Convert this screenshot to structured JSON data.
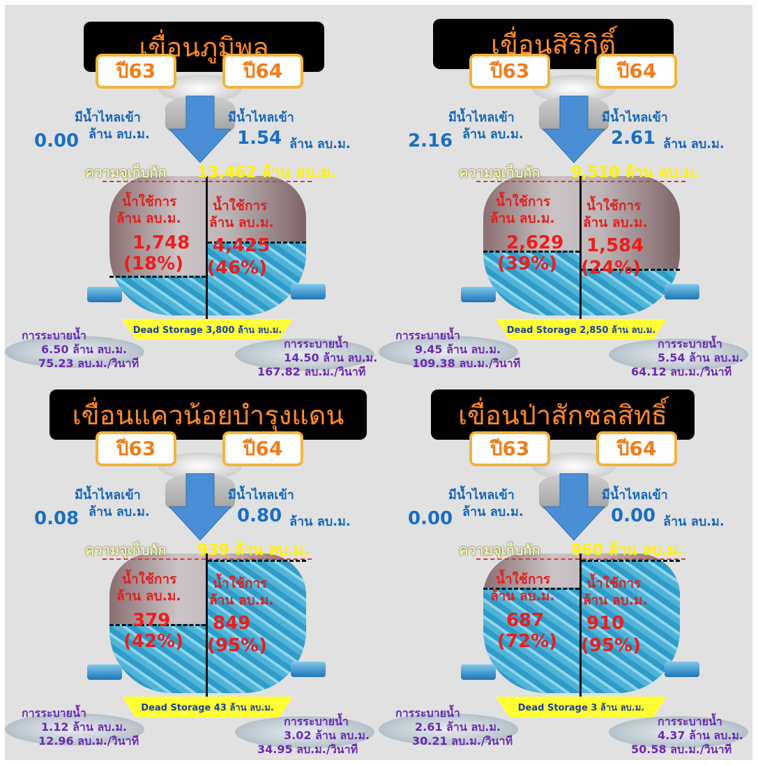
{
  "dams": [
    {
      "name": "เขื่อนภูมิพล",
      "year_left": "ปี63",
      "year_right": "ปี64",
      "inflow_left_label": "มีน้ำไหลเข้า",
      "inflow_left_unit": "ล้าน ลบ.ม.",
      "inflow_left_value": "0.00",
      "inflow_right_label": "มีน้ำไหลเข้า",
      "inflow_right_value": "1.54",
      "inflow_right_unit": "ล้าน ลบ.ม.",
      "capacity_label": "ความจุเก็บกัก",
      "capacity_value": "13,462 ล้าน ลบ.ม.",
      "left_usable_label": "น้ำใช้การ",
      "left_usable_unit": "ล้าน ลบ.ม.",
      "left_usable_value": "1,748",
      "left_usable_pct": "(18%)",
      "left_level": 0.18,
      "right_usable_label": "น้ำใช้การ",
      "right_usable_unit": "ล้าน ลบ.ม.",
      "right_usable_value": "4,425",
      "right_usable_pct": "(46%)",
      "right_level": 0.46,
      "dead_storage": "Dead Storage 3,800 ล้าน ลบ.ม.",
      "release_left_title": "การระบายน้ำ",
      "release_left_mcm": "6.50 ล้าน ลบ.ม.",
      "release_left_cms": "75.23 ลบ.ม./วินาที",
      "release_right_title": "การระบายน้ำ",
      "release_right_mcm": "14.50 ล้าน ลบ.ม.",
      "release_right_cms": "167.82 ลบ.ม./วินาที"
    },
    {
      "name": "เขื่อนสิริกิติ์",
      "year_left": "ปี63",
      "year_right": "ปี64",
      "inflow_left_label": "มีน้ำไหลเข้า",
      "inflow_left_unit": "ล้าน ลบ.ม.",
      "inflow_left_value": "2.16",
      "inflow_right_label": "มีน้ำไหลเข้า",
      "inflow_right_value": "2.61",
      "inflow_right_unit": "ล้าน ลบ.ม.",
      "capacity_label": "ความจุเก็บกัก",
      "capacity_value": "9,510 ล้าน ลบ.ม.",
      "left_usable_label": "น้ำใช้การ",
      "left_usable_unit": "ล้าน ลบ.ม.",
      "left_usable_value": "2,629",
      "left_usable_pct": "(39%)",
      "left_level": 0.39,
      "right_usable_label": "น้ำใช้การ",
      "right_usable_unit": "ล้าน ลบ.ม.",
      "right_usable_value": "1,584",
      "right_usable_pct": "(24%)",
      "right_level": 0.24,
      "dead_storage": "Dead Storage 2,850 ล้าน ลบ.ม.",
      "release_left_title": "การระบายน้ำ",
      "release_left_mcm": "9.45 ล้าน ลบ.ม.",
      "release_left_cms": "109.38 ลบ.ม./วินาที",
      "release_right_title": "การระบายน้ำ",
      "release_right_mcm": "5.54 ล้าน ลบ.ม.",
      "release_right_cms": "64.12 ลบ.ม./วินาที"
    },
    {
      "name": "เขื่อนแควน้อยบำรุงแดน",
      "year_left": "ปี63",
      "year_right": "ปี64",
      "inflow_left_label": "มีน้ำไหลเข้า",
      "inflow_left_unit": "ล้าน ลบ.ม.",
      "inflow_left_value": "0.08",
      "inflow_right_label": "มีน้ำไหลเข้า",
      "inflow_right_value": "0.80",
      "inflow_right_unit": "ล้าน ลบ.ม.",
      "capacity_label": "ความจุเก็บกัก",
      "capacity_value": "939 ล้าน ลบ.ม.",
      "left_usable_label": "น้ำใช้การ",
      "left_usable_unit": "ล้าน ลบ.ม.",
      "left_usable_value": "379",
      "left_usable_pct": "(42%)",
      "left_level": 0.42,
      "right_usable_label": "น้ำใช้การ",
      "right_usable_unit": "ล้าน ลบ.ม.",
      "right_usable_value": "849",
      "right_usable_pct": "(95%)",
      "right_level": 0.95,
      "dead_storage": "Dead Storage 43 ล้าน ลบ.ม.",
      "release_left_title": "การระบายน้ำ",
      "release_left_mcm": "1.12 ล้าน ลบ.ม.",
      "release_left_cms": "12.96 ลบ.ม./วินาที",
      "release_right_title": "การระบายน้ำ",
      "release_right_mcm": "3.02 ล้าน ลบ.ม.",
      "release_right_cms": "34.95 ลบ.ม./วินาที"
    },
    {
      "name": "เขื่อนป่าสักชลสิทธิ์",
      "year_left": "ปี63",
      "year_right": "ปี64",
      "inflow_left_label": "มีน้ำไหลเข้า",
      "inflow_left_unit": "ล้าน ลบ.ม.",
      "inflow_left_value": "0.00",
      "inflow_right_label": "มีน้ำไหลเข้า",
      "inflow_right_value": "0.00",
      "inflow_right_unit": "ล้าน ลบ.ม.",
      "capacity_label": "ความจุเก็บกัก",
      "capacity_value": "960 ล้าน ลบ.ม.",
      "left_usable_label": "น้ำใช้การ",
      "left_usable_unit": "ล้าน ลบ.ม.",
      "left_usable_value": "687",
      "left_usable_pct": "(72%)",
      "left_level": 0.72,
      "right_usable_label": "น้ำใช้การ",
      "right_usable_unit": "ล้าน ลบ.ม.",
      "right_usable_value": "910",
      "right_usable_pct": "(95%)",
      "right_level": 0.95,
      "dead_storage": "Dead Storage 3 ล้าน ลบ.ม.",
      "release_left_title": "การระบายน้ำ",
      "release_left_mcm": "2.61 ล้าน ลบ.ม.",
      "release_left_cms": "30.21 ลบ.ม./วินาที",
      "release_right_title": "การระบายน้ำ",
      "release_right_mcm": "4.37 ล้าน ลบ.ม.",
      "release_right_cms": "50.58 ลบ.ม./วินาที"
    }
  ],
  "colors": {
    "title_bg": "#000000",
    "title_text": "#ff8a2a",
    "year_border": "#f2b33d",
    "inflow_text": "#1667b8",
    "usable_text": "#ee1c1c",
    "capacity_text": "#fff200",
    "dead_storage_bg": "#ffff33",
    "release_text": "#6a2ab0"
  }
}
